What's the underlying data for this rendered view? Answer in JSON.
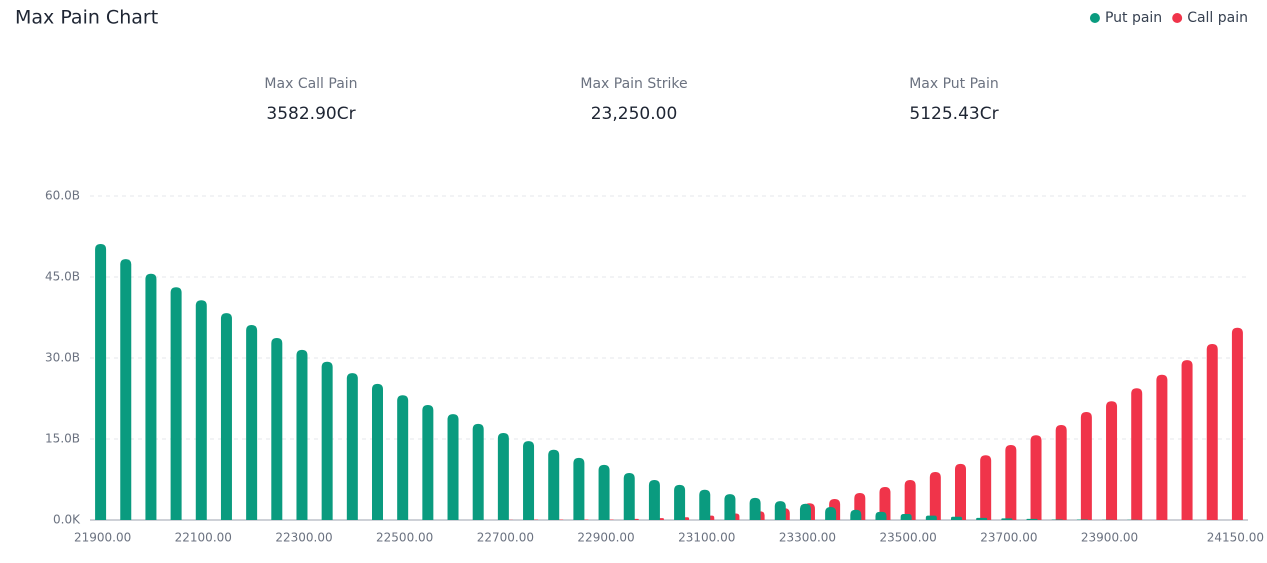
{
  "chart_data": {
    "type": "bar",
    "title": "Max Pain Chart",
    "stats": [
      {
        "label": "Max Call Pain",
        "value": "3582.90Cr"
      },
      {
        "label": "Max Pain Strike",
        "value": "23,250.00"
      },
      {
        "label": "Max Put Pain",
        "value": "5125.43Cr"
      }
    ],
    "categories": [
      "21900.00",
      null,
      null,
      null,
      "22100.00",
      null,
      null,
      null,
      "22300.00",
      null,
      null,
      null,
      "22500.00",
      null,
      null,
      null,
      "22700.00",
      null,
      null,
      null,
      "22900.00",
      null,
      null,
      null,
      "23100.00",
      null,
      null,
      null,
      "23300.00",
      null,
      null,
      null,
      "23500.00",
      null,
      null,
      null,
      "23700.00",
      null,
      null,
      null,
      "23900.00",
      null,
      null,
      null,
      null,
      "24150.00"
    ],
    "series": [
      {
        "name": "Put pain",
        "color": "#0a9b7f",
        "values": [
          51.1,
          48.3,
          45.6,
          43.1,
          40.7,
          38.3,
          36.1,
          33.7,
          31.5,
          29.3,
          27.2,
          25.2,
          23.1,
          21.3,
          19.6,
          17.8,
          16.1,
          14.6,
          13.0,
          11.5,
          10.2,
          8.7,
          7.4,
          6.5,
          5.6,
          4.8,
          4.1,
          3.5,
          3.0,
          2.4,
          1.9,
          1.5,
          1.1,
          0.8,
          0.6,
          0.4,
          0.3,
          0.2,
          0.1,
          0.1,
          0.05,
          0.05,
          0,
          0,
          0,
          0
        ]
      },
      {
        "name": "Call pain",
        "color": "#f0344a",
        "values": [
          0,
          0,
          0,
          0,
          0,
          0,
          0,
          0,
          0,
          0,
          0,
          0,
          0,
          0,
          0,
          0,
          0.05,
          0.1,
          0.1,
          0.1,
          0.1,
          0.2,
          0.35,
          0.5,
          0.8,
          1.2,
          1.6,
          2.2,
          3.1,
          3.9,
          5.0,
          6.1,
          7.4,
          8.9,
          10.4,
          12.0,
          13.9,
          15.7,
          17.6,
          20.0,
          22.0,
          24.4,
          26.9,
          29.6,
          32.6,
          35.6
        ]
      }
    ],
    "ylim": [
      0,
      60
    ],
    "yticks": [
      {
        "value": 0,
        "label": "0.0K"
      },
      {
        "value": 15,
        "label": "15.0B"
      },
      {
        "value": 30,
        "label": "30.0B"
      },
      {
        "value": 45,
        "label": "45.0B"
      },
      {
        "value": 60,
        "label": "60.0B"
      }
    ],
    "grid": true,
    "legend": "top-right"
  }
}
